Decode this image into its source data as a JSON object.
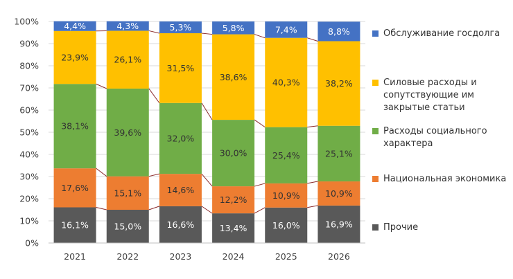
{
  "chart_data": {
    "type": "bar",
    "stacked": true,
    "categories": [
      "2021",
      "2022",
      "2023",
      "2024",
      "2025",
      "2026"
    ],
    "series": [
      {
        "name": "Прочие",
        "color": "#595959",
        "values": [
          16.1,
          15.0,
          16.6,
          13.4,
          16.0,
          16.9
        ],
        "labels": [
          "16,1%",
          "15,0%",
          "16,6%",
          "13,4%",
          "16,0%",
          "16,9%"
        ],
        "label_color": "#ffffff"
      },
      {
        "name": "Национальная экономика",
        "color": "#ED7D31",
        "values": [
          17.6,
          15.1,
          14.6,
          12.2,
          10.9,
          10.9
        ],
        "labels": [
          "17,6%",
          "15,1%",
          "14,6%",
          "12,2%",
          "10,9%",
          "10,9%"
        ],
        "label_color": "#333333"
      },
      {
        "name": "Расходы социального характера",
        "color": "#70AD47",
        "values": [
          38.1,
          39.6,
          32.0,
          30.0,
          25.4,
          25.1
        ],
        "labels": [
          "38,1%",
          "39,6%",
          "32,0%",
          "30,0%",
          "25,4%",
          "25,1%"
        ],
        "label_color": "#333333"
      },
      {
        "name": "Силовые расходы и сопутствующие им закрытые статьи",
        "color": "#FFC000",
        "values": [
          23.9,
          26.1,
          31.5,
          38.6,
          40.3,
          38.2
        ],
        "labels": [
          "23,9%",
          "26,1%",
          "31,5%",
          "38,6%",
          "40,3%",
          "38,2%"
        ],
        "label_color": "#333333"
      },
      {
        "name": "Обслуживание госдолга",
        "color": "#4472C4",
        "values": [
          4.4,
          4.3,
          5.3,
          5.8,
          7.4,
          8.8
        ],
        "labels": [
          "4,4%",
          "4,3%",
          "5,3%",
          "5,8%",
          "7,4%",
          "8,8%"
        ],
        "label_color": "#ffffff"
      }
    ],
    "y_ticks": [
      "0%",
      "10%",
      "20%",
      "30%",
      "40%",
      "50%",
      "60%",
      "70%",
      "80%",
      "90%",
      "100%"
    ],
    "ylim": [
      0,
      100
    ],
    "grid": true,
    "series_lines": true,
    "series_line_color": "#8B2A2A",
    "legend_position": "right"
  }
}
